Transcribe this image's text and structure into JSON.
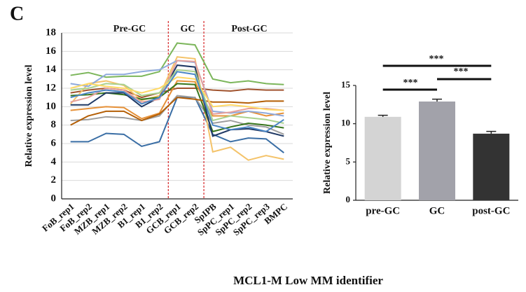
{
  "panel_label": "C",
  "caption": "MCL1-M Low MM identifier",
  "chart_data": [
    {
      "type": "line",
      "y_label": "Relative expression level",
      "annotations": [
        "Pre-GC",
        "GC",
        "Post-GC"
      ],
      "categories": [
        "FoB_rep1",
        "FoB_rep2",
        "MZB_rep1",
        "MZB_rep2",
        "B1_rep1",
        "B1_rep2",
        "GCB_rep1",
        "GCB_rep2",
        "SpIPB",
        "SpPC_rep1",
        "SpPC_rep2",
        "SpPC_rep3",
        "BMPC"
      ],
      "ylim": [
        0,
        18
      ],
      "yticks": [
        0,
        2,
        4,
        6,
        8,
        10,
        12,
        14,
        16,
        18
      ],
      "grid": true,
      "series": [
        {
          "color": "#7cb65b",
          "values": [
            13.4,
            13.7,
            13.2,
            13.3,
            13.3,
            13.8,
            16.9,
            16.7,
            13.0,
            12.6,
            12.8,
            12.5,
            12.4
          ]
        },
        {
          "color": "#3a6ea5",
          "values": [
            6.2,
            6.2,
            7.1,
            7.0,
            5.7,
            6.2,
            11.0,
            11.0,
            7.0,
            6.2,
            6.6,
            6.5,
            5.0
          ]
        },
        {
          "color": "#a0522d",
          "values": [
            11.5,
            11.8,
            12.0,
            11.8,
            11.0,
            11.5,
            12.0,
            12.0,
            11.8,
            11.7,
            11.9,
            11.8,
            11.8
          ]
        },
        {
          "color": "#e69138",
          "values": [
            9.6,
            9.8,
            10.0,
            9.9,
            8.7,
            9.3,
            12.8,
            12.7,
            9.0,
            9.0,
            9.5,
            9.0,
            9.3
          ]
        },
        {
          "color": "#f4c36a",
          "values": [
            10.3,
            12.5,
            12.8,
            12.3,
            10.7,
            11.2,
            15.4,
            15.2,
            5.1,
            5.6,
            4.2,
            4.7,
            4.3
          ]
        },
        {
          "color": "#9e9e9e",
          "values": [
            8.5,
            8.6,
            8.9,
            8.8,
            8.5,
            9.0,
            11.2,
            11.0,
            8.2,
            8.5,
            8.0,
            7.8,
            7.0
          ]
        },
        {
          "color": "#8faadc",
          "values": [
            12.5,
            12.2,
            13.5,
            13.5,
            13.8,
            14.0,
            15.0,
            14.8,
            9.5,
            9.3,
            9.5,
            9.3,
            9.0
          ]
        },
        {
          "color": "#38761d",
          "values": [
            11.2,
            11.3,
            11.5,
            11.3,
            10.8,
            11.0,
            12.5,
            12.4,
            7.3,
            7.8,
            8.2,
            8.0,
            7.7
          ]
        },
        {
          "color": "#b45f06",
          "values": [
            8.0,
            9.0,
            9.5,
            9.5,
            8.5,
            9.2,
            11.0,
            10.8,
            10.5,
            10.5,
            10.4,
            10.6,
            10.6
          ]
        },
        {
          "color": "#1f3864",
          "values": [
            10.2,
            10.2,
            11.5,
            11.5,
            10.0,
            11.0,
            14.5,
            14.3,
            6.8,
            7.5,
            7.6,
            7.3,
            6.8
          ]
        },
        {
          "color": "#e6a09a",
          "values": [
            10.5,
            11.0,
            12.0,
            11.8,
            10.5,
            10.8,
            15.0,
            14.9,
            9.2,
            9.4,
            9.8,
            9.8,
            9.6
          ]
        },
        {
          "color": "#a9d18e",
          "values": [
            11.8,
            12.0,
            12.5,
            12.4,
            11.2,
            11.5,
            14.0,
            13.8,
            8.5,
            9.0,
            8.8,
            8.6,
            8.2
          ]
        },
        {
          "color": "#ffd966",
          "values": [
            12.0,
            12.5,
            12.2,
            12.0,
            11.5,
            12.0,
            13.2,
            13.0,
            10.0,
            10.2,
            10.0,
            9.7,
            9.6
          ]
        },
        {
          "color": "#4a86c5",
          "values": [
            11.0,
            11.5,
            11.8,
            11.6,
            10.3,
            11.0,
            13.8,
            13.5,
            8.0,
            7.5,
            7.8,
            7.3,
            8.6
          ]
        }
      ]
    },
    {
      "type": "bar",
      "y_label": "Relative expression level",
      "annotations": [
        "***",
        "***",
        "***"
      ],
      "categories": [
        "pre-GC",
        "GC",
        "post-GC"
      ],
      "values": [
        10.9,
        12.9,
        8.7
      ],
      "errors": [
        0.2,
        0.3,
        0.3
      ],
      "colors": [
        "#d4d4d4",
        "#a2a2aa",
        "#333333"
      ],
      "ylim": [
        0,
        15
      ],
      "yticks": [
        0,
        5,
        10,
        15
      ],
      "grid": false
    }
  ]
}
